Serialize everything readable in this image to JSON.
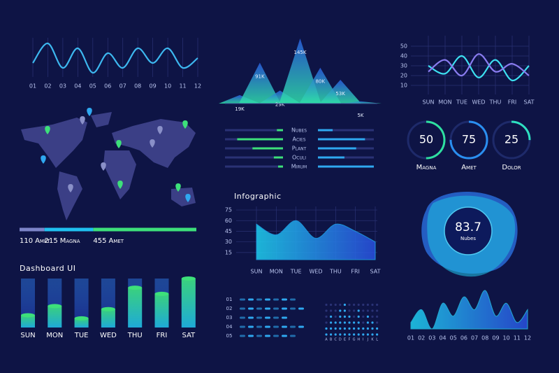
{
  "chart_data": [
    {
      "type": "line",
      "categories": [
        "01",
        "02",
        "03",
        "04",
        "05",
        "06",
        "07",
        "08",
        "09",
        "10",
        "11",
        "12"
      ],
      "values": [
        4,
        8,
        3,
        7,
        2,
        6,
        3,
        7,
        4,
        7,
        3,
        5
      ],
      "color": "#3db8f0",
      "grid": true
    },
    {
      "type": "peak",
      "values": [
        19000,
        91000,
        29000,
        145000,
        80000,
        53000,
        5000
      ],
      "value_labels": [
        "19K",
        "91K",
        "29K",
        "145K",
        "80K",
        "53K",
        "5K"
      ],
      "color": "#2fc4a8"
    },
    {
      "type": "line",
      "categories": [
        "SUN",
        "MON",
        "TUE",
        "WED",
        "THU",
        "FRI",
        "SAT"
      ],
      "series": [
        {
          "color": "#3de0f0",
          "values": [
            30,
            22,
            40,
            18,
            36,
            15,
            30
          ]
        },
        {
          "color": "#8a7cf0",
          "values": [
            24,
            36,
            20,
            42,
            24,
            32,
            20
          ]
        }
      ],
      "ylim": [
        5,
        55
      ],
      "yticks": [
        10,
        20,
        30,
        40,
        50
      ],
      "grid": true
    },
    {
      "type": "bar",
      "orientation": "horizontal",
      "categories": [
        "Nubes",
        "Acies",
        "Plant",
        "Oculi",
        "Mirum"
      ],
      "series": [
        {
          "color": "#3de07a",
          "values": [
            10,
            75,
            50,
            15,
            8
          ]
        },
        {
          "color": "#2fa8f0",
          "values": [
            25,
            80,
            65,
            45,
            95
          ]
        }
      ]
    },
    {
      "type": "gauge",
      "categories": [
        "Magna",
        "Amet",
        "Dolor"
      ],
      "values": [
        50,
        75,
        25
      ],
      "colors": [
        "#2ee0a0",
        "#2a8ff0",
        "#2ee0c0"
      ]
    },
    {
      "type": "progress",
      "categories": [
        "Amet",
        "Magna",
        "Amet"
      ],
      "values": [
        110,
        215,
        455
      ],
      "colors": [
        "#7c84c8",
        "#1fc0f0",
        "#3de07a"
      ]
    },
    {
      "type": "area",
      "title": "Infographic",
      "categories": [
        "SUN",
        "MON",
        "TUE",
        "WED",
        "THU",
        "FRI",
        "SAT"
      ],
      "values": [
        55,
        40,
        60,
        35,
        55,
        45,
        30
      ],
      "color": "#1fa8f0",
      "ylim": [
        5,
        80
      ],
      "yticks": [
        15,
        30,
        45,
        60,
        75
      ],
      "grid": true
    },
    {
      "type": "column",
      "title": "Dashboard UI",
      "categories": [
        "SUN",
        "MON",
        "TUE",
        "WED",
        "THU",
        "FRI",
        "SAT"
      ],
      "values": [
        20,
        35,
        15,
        30,
        65,
        55,
        80
      ],
      "color": "#3de07a"
    },
    {
      "type": "dot",
      "orientation": "horizontal",
      "categories": [
        "01",
        "02",
        "03",
        "04",
        "05"
      ],
      "values": [
        7,
        8,
        6,
        8,
        7
      ],
      "color": "#2fa8f0"
    },
    {
      "type": "dot",
      "categories": [
        "A",
        "B",
        "C",
        "D",
        "E",
        "F",
        "G",
        "H",
        "I",
        "J",
        "K",
        "L"
      ],
      "values": [
        2,
        4,
        3,
        5,
        6,
        4,
        3,
        5,
        2,
        4,
        3,
        2
      ],
      "color": "#2fa8f0"
    },
    {
      "type": "kpi",
      "value": 83.7,
      "label": "Nubes"
    },
    {
      "type": "area",
      "categories": [
        "01",
        "02",
        "03",
        "04",
        "05",
        "06",
        "07",
        "08",
        "09",
        "10",
        "11",
        "12"
      ],
      "values": [
        3,
        5,
        2,
        6,
        4,
        7,
        5,
        8,
        4,
        6,
        3,
        5
      ],
      "color": "#25c4e8"
    }
  ]
}
